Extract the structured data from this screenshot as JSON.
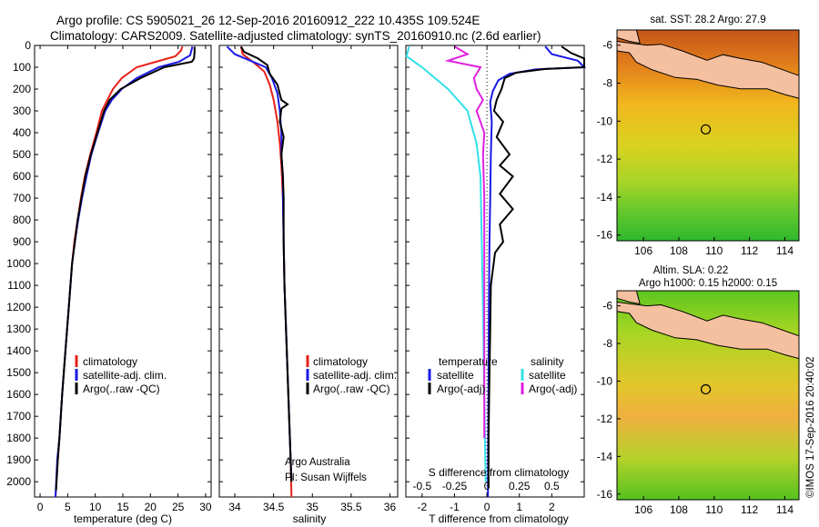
{
  "header": {
    "line1": "Argo profile: CS 5905021_26 12-Sep-2016 20160912_222 10.435S 109.524E",
    "line2": "Climatology: CARS2009. Satellite-adjusted climatology: synTS_20160910.nc (2.6d earlier)"
  },
  "colors": {
    "climatology": "#e8211a",
    "satellite": "#1a1ae6",
    "argo": "#000000",
    "satellite_s": "#33e0e8",
    "argo_s": "#e020e0"
  },
  "chart_data": [
    {
      "type": "line",
      "xlabel": "temperature (deg C)",
      "xlim": [
        -1,
        31
      ],
      "xticks": [
        0,
        5,
        10,
        15,
        20,
        25,
        30
      ],
      "ylim": [
        0,
        2070
      ],
      "yticks": [
        0,
        100,
        200,
        300,
        400,
        500,
        600,
        700,
        800,
        900,
        1000,
        1100,
        1200,
        1300,
        1400,
        1500,
        1600,
        1700,
        1800,
        1900,
        2000
      ],
      "legend": [
        "climatology",
        "satellite-adj. clim.",
        "Argo(..raw -QC)"
      ],
      "series": [
        {
          "name": "climatology",
          "color": "climatology",
          "points": [
            [
              25.8,
              5
            ],
            [
              25.5,
              25
            ],
            [
              24.5,
              50
            ],
            [
              21,
              75
            ],
            [
              17.5,
              100
            ],
            [
              14.8,
              150
            ],
            [
              13.2,
              200
            ],
            [
              12.2,
              250
            ],
            [
              11.2,
              300
            ],
            [
              10.2,
              400
            ],
            [
              9.1,
              500
            ],
            [
              8.1,
              600
            ],
            [
              7.4,
              700
            ],
            [
              6.8,
              800
            ],
            [
              6.2,
              900
            ],
            [
              5.8,
              1000
            ],
            [
              5.2,
              1200
            ],
            [
              4.6,
              1400
            ],
            [
              4.0,
              1600
            ],
            [
              3.5,
              1800
            ],
            [
              3.2,
              1900
            ],
            [
              2.8,
              2070
            ]
          ]
        },
        {
          "name": "satellite-adj. clim.",
          "color": "satellite",
          "points": [
            [
              27.6,
              5
            ],
            [
              27.4,
              25
            ],
            [
              27.2,
              45
            ],
            [
              25.2,
              75
            ],
            [
              21.5,
              100
            ],
            [
              17.5,
              150
            ],
            [
              14.8,
              200
            ],
            [
              13.0,
              250
            ],
            [
              11.8,
              300
            ],
            [
              10.5,
              400
            ],
            [
              9.3,
              500
            ],
            [
              8.4,
              600
            ],
            [
              7.6,
              700
            ],
            [
              6.9,
              800
            ],
            [
              6.3,
              900
            ],
            [
              5.8,
              1000
            ],
            [
              5.2,
              1200
            ],
            [
              4.6,
              1400
            ],
            [
              4.0,
              1600
            ],
            [
              3.5,
              1800
            ],
            [
              3.1,
              1900
            ],
            [
              2.8,
              2070
            ]
          ]
        },
        {
          "name": "Argo(..raw -QC)",
          "color": "argo",
          "points": [
            [
              28.0,
              5
            ],
            [
              28.0,
              30
            ],
            [
              27.9,
              60
            ],
            [
              27.5,
              75
            ],
            [
              22.5,
              100
            ],
            [
              18.2,
              150
            ],
            [
              14.6,
              200
            ],
            [
              12.6,
              250
            ],
            [
              11.6,
              300
            ],
            [
              10.4,
              400
            ],
            [
              9.2,
              500
            ],
            [
              8.2,
              600
            ],
            [
              7.5,
              700
            ],
            [
              6.8,
              800
            ],
            [
              6.3,
              900
            ],
            [
              5.8,
              1000
            ],
            [
              5.2,
              1200
            ],
            [
              4.6,
              1400
            ],
            [
              4.0,
              1600
            ],
            [
              3.5,
              1800
            ],
            [
              3.2,
              1900
            ],
            [
              2.9,
              2040
            ]
          ]
        }
      ]
    },
    {
      "type": "line",
      "xlabel": "salinity",
      "xlim": [
        33.8,
        36.1
      ],
      "xticks": [
        34,
        34.5,
        35,
        35.5,
        36
      ],
      "ylim": [
        0,
        2070
      ],
      "legend": [
        "climatology",
        "satellite-adj. clim.",
        "Argo(..raw -QC)"
      ],
      "annotation": [
        "Argo Australia",
        "PI: Susan Wijffels"
      ],
      "series": [
        {
          "name": "climatology",
          "color": "climatology",
          "points": [
            [
              34.08,
              5
            ],
            [
              34.1,
              40
            ],
            [
              34.25,
              80
            ],
            [
              34.38,
              120
            ],
            [
              34.45,
              180
            ],
            [
              34.5,
              250
            ],
            [
              34.55,
              350
            ],
            [
              34.58,
              450
            ],
            [
              34.6,
              550
            ],
            [
              34.62,
              700
            ],
            [
              34.63,
              900
            ],
            [
              34.64,
              1100
            ],
            [
              34.66,
              1300
            ],
            [
              34.68,
              1500
            ],
            [
              34.7,
              1700
            ],
            [
              34.72,
              1900
            ],
            [
              34.73,
              2070
            ]
          ]
        },
        {
          "name": "satellite-adj. clim.",
          "color": "satellite",
          "points": [
            [
              33.9,
              5
            ],
            [
              34.0,
              40
            ],
            [
              34.2,
              70
            ],
            [
              34.4,
              100
            ],
            [
              34.48,
              150
            ],
            [
              34.55,
              220
            ],
            [
              34.58,
              300
            ],
            [
              34.6,
              400
            ],
            [
              34.6,
              500
            ],
            [
              34.62,
              600
            ],
            [
              34.62,
              700
            ],
            [
              34.63,
              900
            ],
            [
              34.64,
              1100
            ],
            [
              34.66,
              1300
            ],
            [
              34.68,
              1500
            ],
            [
              34.7,
              1700
            ],
            [
              34.72,
              1900
            ],
            [
              34.73,
              1990
            ]
          ]
        },
        {
          "name": "Argo(..raw -QC)",
          "color": "argo",
          "points": [
            [
              34.08,
              5
            ],
            [
              34.12,
              30
            ],
            [
              34.3,
              60
            ],
            [
              34.42,
              90
            ],
            [
              34.45,
              130
            ],
            [
              34.55,
              180
            ],
            [
              34.6,
              250
            ],
            [
              34.68,
              270
            ],
            [
              34.6,
              290
            ],
            [
              34.58,
              350
            ],
            [
              34.63,
              420
            ],
            [
              34.6,
              500
            ],
            [
              34.62,
              600
            ],
            [
              34.63,
              700
            ],
            [
              34.63,
              900
            ],
            [
              34.64,
              1100
            ],
            [
              34.66,
              1300
            ],
            [
              34.68,
              1500
            ],
            [
              34.7,
              1700
            ],
            [
              34.72,
              1900
            ],
            [
              34.73,
              2000
            ]
          ]
        }
      ]
    },
    {
      "type": "line",
      "xlabel": "T difference from climatology",
      "x2label": "S difference from climatology",
      "xlim": [
        -2.5,
        3
      ],
      "xticks": [
        -2,
        -1,
        0,
        1,
        2
      ],
      "x2ticks": [
        -0.5,
        -0.25,
        0,
        0.25,
        0.5
      ],
      "ylim": [
        0,
        2070
      ],
      "legend_t": [
        "temperature",
        "satellite",
        "Argo(-adj)"
      ],
      "legend_s": [
        "salinity",
        "satellite",
        "Argo(-adj)"
      ],
      "series": [
        {
          "name": "satellite",
          "color": "satellite",
          "points": [
            [
              1.8,
              5
            ],
            [
              2.0,
              40
            ],
            [
              2.8,
              70
            ],
            [
              3.0,
              100
            ],
            [
              1.5,
              110
            ],
            [
              0.7,
              130
            ],
            [
              0.35,
              160
            ],
            [
              0.18,
              210
            ],
            [
              0.1,
              260
            ],
            [
              0.15,
              350
            ],
            [
              0.12,
              500
            ],
            [
              0.1,
              700
            ],
            [
              0.08,
              900
            ],
            [
              0.06,
              1200
            ],
            [
              0.05,
              1500
            ],
            [
              0.04,
              1800
            ],
            [
              0.03,
              2070
            ]
          ]
        },
        {
          "name": "Argo(-adj)",
          "color": "argo",
          "points": [
            [
              2.3,
              5
            ],
            [
              2.6,
              35
            ],
            [
              3.0,
              60
            ],
            [
              3.0,
              100
            ],
            [
              1.8,
              108
            ],
            [
              0.9,
              125
            ],
            [
              0.55,
              150
            ],
            [
              0.45,
              200
            ],
            [
              0.3,
              250
            ],
            [
              0.22,
              300
            ],
            [
              0.5,
              350
            ],
            [
              0.3,
              420
            ],
            [
              0.7,
              500
            ],
            [
              0.4,
              550
            ],
            [
              0.8,
              600
            ],
            [
              0.4,
              680
            ],
            [
              0.8,
              750
            ],
            [
              0.4,
              820
            ],
            [
              0.5,
              900
            ],
            [
              0.25,
              950
            ],
            [
              0.12,
              1100
            ],
            [
              0.1,
              1300
            ],
            [
              0.08,
              1500
            ],
            [
              0.05,
              1800
            ],
            [
              0.05,
              2030
            ]
          ]
        },
        {
          "name": "satellite",
          "color": "satellite_s",
          "points": [
            [
              -0.6,
              5
            ],
            [
              -0.62,
              50
            ],
            [
              -0.5,
              100
            ],
            [
              -0.3,
              200
            ],
            [
              -0.15,
              300
            ],
            [
              -0.08,
              450
            ],
            [
              -0.05,
              600
            ],
            [
              -0.04,
              900
            ],
            [
              -0.03,
              1200
            ],
            [
              -0.02,
              1600
            ],
            [
              -0.01,
              2000
            ]
          ]
        },
        {
          "name": "Argo(-adj)",
          "color": "argo_s",
          "points": [
            [
              -0.25,
              5
            ],
            [
              -0.15,
              40
            ],
            [
              -0.3,
              70
            ],
            [
              -0.05,
              100
            ],
            [
              -0.1,
              150
            ],
            [
              -0.08,
              200
            ],
            [
              -0.03,
              250
            ],
            [
              -0.08,
              300
            ],
            [
              -0.02,
              400
            ],
            [
              -0.03,
              500
            ],
            [
              -0.02,
              700
            ],
            [
              -0.02,
              900
            ],
            [
              -0.02,
              1300
            ],
            [
              -0.02,
              1800
            ]
          ]
        }
      ]
    },
    {
      "type": "heatmap",
      "title": "sat. SST: 28.2 Argo: 27.9",
      "xticks": [
        "106",
        "108",
        "110",
        "112",
        "114"
      ],
      "yticks": [
        "-6",
        "-8",
        "-10",
        "-12",
        "-14",
        "-16"
      ],
      "xlim": [
        104.5,
        114.8
      ],
      "ylim": [
        -16.3,
        -5.2
      ],
      "argo_position": [
        109.524,
        -10.435
      ]
    },
    {
      "type": "heatmap",
      "title_lines": [
        "Altim. SLA: 0.22",
        "Argo h1000: 0.15 h2000: 0.15"
      ],
      "xticks": [
        "106",
        "108",
        "110",
        "112",
        "114"
      ],
      "yticks": [
        "-6",
        "-8",
        "-10",
        "-12",
        "-14",
        "-16"
      ],
      "xlim": [
        104.5,
        114.8
      ],
      "ylim": [
        -16.3,
        -5.2
      ],
      "argo_position": [
        109.524,
        -10.435
      ]
    }
  ],
  "credit": "©IMOS 17-Sep-2016 20:40:02"
}
